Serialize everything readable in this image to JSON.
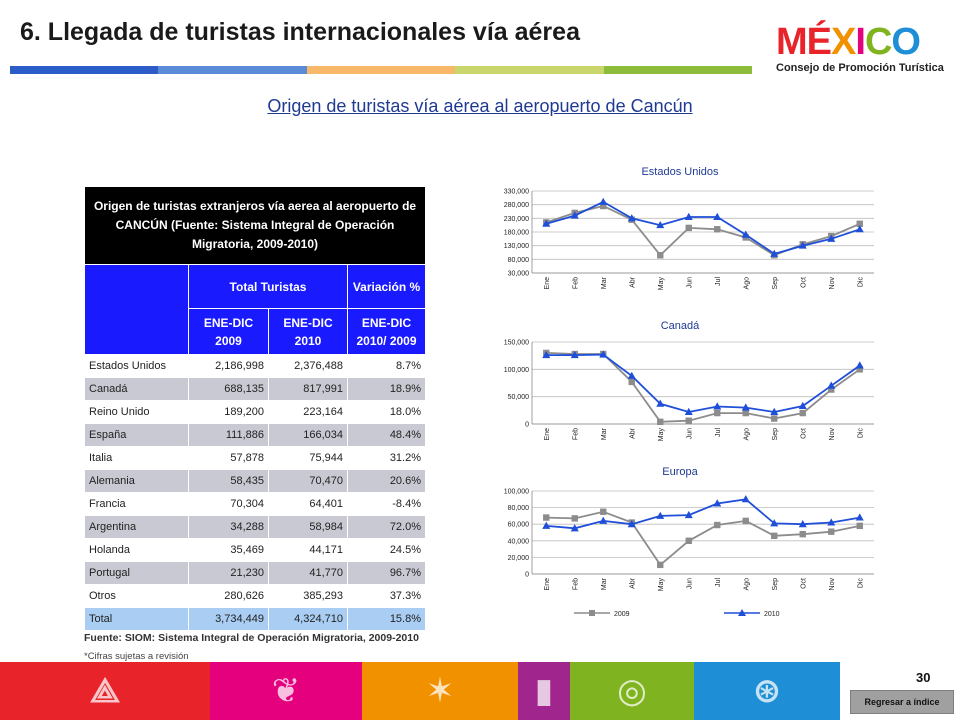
{
  "header": {
    "title": "6. Llegada de turistas internacionales vía aérea",
    "bar_colors": [
      "#2b5cc8",
      "#5b8ad8",
      "#f7b86a",
      "#c8d66b",
      "#8dbb3a"
    ]
  },
  "logo": {
    "word": "MÉXICO",
    "letter_colors": [
      "#e8232a",
      "#e8232a",
      "#f29100",
      "#e5007e",
      "#7fb31f",
      "#1e8fd6"
    ],
    "subtitle": "Consejo de Promoción Turística"
  },
  "subtitle": "Origen de turistas vía aérea al aeropuerto de Cancún",
  "table": {
    "title": "Origen de turistas extranjeros vía aerea al aeropuerto de CANCÚN (Fuente: Sistema Integral de Operación Migratoria, 2009-2010)",
    "group_header_total": "Total Turistas",
    "group_header_var": "Variación %",
    "col_2009": "ENE-DIC 2009",
    "col_2010": "ENE-DIC 2010",
    "col_var": "ENE-DIC 2010/ 2009",
    "rows": [
      {
        "country": "Estados Unidos",
        "y2009": "2,186,998",
        "y2010": "2,376,488",
        "var": "8.7%"
      },
      {
        "country": "Canadá",
        "y2009": "688,135",
        "y2010": "817,991",
        "var": "18.9%"
      },
      {
        "country": "Reino Unido",
        "y2009": "189,200",
        "y2010": "223,164",
        "var": "18.0%"
      },
      {
        "country": "España",
        "y2009": "111,886",
        "y2010": "166,034",
        "var": "48.4%"
      },
      {
        "country": "Italia",
        "y2009": "57,878",
        "y2010": "75,944",
        "var": "31.2%"
      },
      {
        "country": "Alemania",
        "y2009": "58,435",
        "y2010": "70,470",
        "var": "20.6%"
      },
      {
        "country": "Francia",
        "y2009": "70,304",
        "y2010": "64,401",
        "var": "-8.4%"
      },
      {
        "country": "Argentina",
        "y2009": "34,288",
        "y2010": "58,984",
        "var": "72.0%"
      },
      {
        "country": "Holanda",
        "y2009": "35,469",
        "y2010": "44,171",
        "var": "24.5%"
      },
      {
        "country": "Portugal",
        "y2009": "21,230",
        "y2010": "41,770",
        "var": "96.7%"
      },
      {
        "country": "Otros",
        "y2009": "280,626",
        "y2010": "385,293",
        "var": "37.3%"
      }
    ],
    "total": {
      "country": "Total",
      "y2009": "3,734,449",
      "y2010": "4,324,710",
      "var": "15.8%"
    }
  },
  "source": "Fuente: SIOM: Sistema Integral de Operación Migratoria, 2009-2010",
  "note": "*Cifras sujetas a revisión",
  "page_number": "30",
  "back_button": "Regresar a índice",
  "footer_colors": [
    "#e8232a",
    "#e5007e",
    "#f29100",
    "#a0258c",
    "#7fb31f",
    "#1e8fd6"
  ],
  "chart_data": [
    {
      "type": "line",
      "title": "Estados Unidos",
      "categories": [
        "Ene",
        "Feb",
        "Mar",
        "Abr",
        "May",
        "Jun",
        "Jul",
        "Ago",
        "Sep",
        "Oct",
        "Nov",
        "Dic"
      ],
      "ylim": [
        30000,
        330000
      ],
      "yticks": [
        30000,
        80000,
        130000,
        180000,
        230000,
        280000,
        330000
      ],
      "ytick_labels": [
        "30,000",
        "80,000",
        "130,000",
        "180,000",
        "230,000",
        "280,000",
        "330,000"
      ],
      "series": [
        {
          "name": "2009",
          "color": "#8c8c8c",
          "marker": "square",
          "values": [
            215000,
            250000,
            275000,
            225000,
            95000,
            195000,
            190000,
            160000,
            95000,
            135000,
            165000,
            210000
          ]
        },
        {
          "name": "2010",
          "color": "#1f4fd8",
          "marker": "triangle",
          "values": [
            210000,
            240000,
            290000,
            230000,
            205000,
            235000,
            235000,
            170000,
            100000,
            130000,
            155000,
            190000
          ]
        }
      ],
      "grid": true
    },
    {
      "type": "line",
      "title": "Canadá",
      "categories": [
        "Ene",
        "Feb",
        "Mar",
        "Abr",
        "May",
        "Jun",
        "Jul",
        "Ago",
        "Sep",
        "Oct",
        "Nov",
        "Dic"
      ],
      "ylim": [
        0,
        150000
      ],
      "yticks": [
        0,
        50000,
        100000,
        150000
      ],
      "ytick_labels": [
        "0",
        "50,000",
        "100,000",
        "150,000"
      ],
      "series": [
        {
          "name": "2009",
          "color": "#8c8c8c",
          "marker": "square",
          "values": [
            130000,
            128000,
            128000,
            77000,
            4000,
            6000,
            20000,
            20000,
            10000,
            20000,
            63000,
            100000
          ]
        },
        {
          "name": "2010",
          "color": "#1f4fd8",
          "marker": "triangle",
          "values": [
            126000,
            126000,
            127000,
            88000,
            37000,
            22000,
            32000,
            30000,
            22000,
            33000,
            70000,
            107000
          ]
        }
      ],
      "grid": true
    },
    {
      "type": "line",
      "title": "Europa",
      "categories": [
        "Ene",
        "Feb",
        "Mar",
        "Abr",
        "May",
        "Jun",
        "Jul",
        "Ago",
        "Sep",
        "Oct",
        "Nov",
        "Dic"
      ],
      "ylim": [
        0,
        100000
      ],
      "yticks": [
        0,
        20000,
        40000,
        60000,
        80000,
        100000
      ],
      "ytick_labels": [
        "0",
        "20,000",
        "40,000",
        "60,000",
        "80,000",
        "100,000"
      ],
      "series": [
        {
          "name": "2009",
          "color": "#8c8c8c",
          "marker": "square",
          "values": [
            68000,
            67000,
            75000,
            62000,
            11000,
            40000,
            59000,
            64000,
            46000,
            48000,
            51000,
            58000
          ]
        },
        {
          "name": "2010",
          "color": "#1f4fd8",
          "marker": "triangle",
          "values": [
            58000,
            55000,
            64000,
            60000,
            70000,
            71000,
            85000,
            90000,
            61000,
            60000,
            62000,
            68000
          ]
        }
      ],
      "legend": "bottom",
      "grid": true
    }
  ]
}
